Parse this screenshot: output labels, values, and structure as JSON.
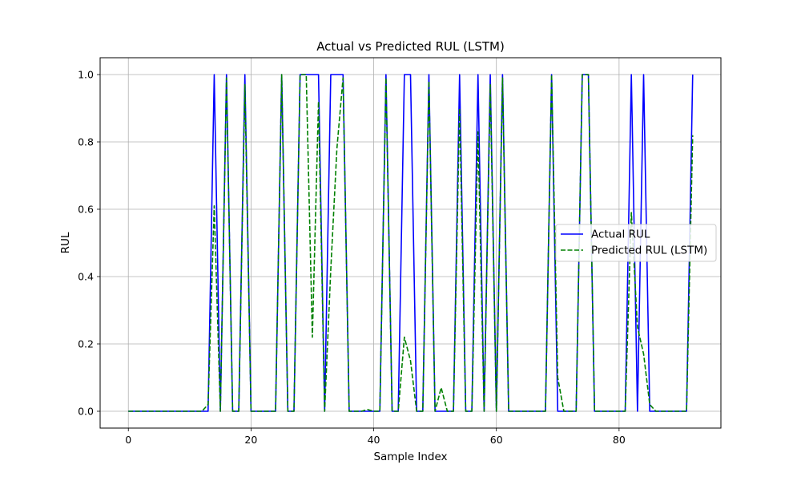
{
  "chart_data": {
    "type": "line",
    "title": "Actual vs Predicted RUL (LSTM)",
    "xlabel": "Sample Index",
    "ylabel": "RUL",
    "xlim": [
      -4.6,
      96.6
    ],
    "ylim": [
      -0.05,
      1.05
    ],
    "xticks": [
      0,
      20,
      40,
      60,
      80
    ],
    "yticks": [
      0.0,
      0.2,
      0.4,
      0.6,
      0.8,
      1.0
    ],
    "grid": true,
    "legend_position": "center-right",
    "series": [
      {
        "name": "Actual RUL",
        "color": "#0000ff",
        "style": "solid",
        "values": [
          0,
          0,
          0,
          0,
          0,
          0,
          0,
          0,
          0,
          0,
          0,
          0,
          0,
          0,
          1,
          0,
          1,
          0,
          0,
          1,
          0,
          0,
          0,
          0,
          0,
          1,
          0,
          0,
          1,
          1,
          1,
          1,
          0,
          1,
          1,
          1,
          0,
          0,
          0,
          0,
          0,
          0,
          1,
          0,
          0,
          1,
          1,
          0,
          0,
          1,
          0,
          0,
          0,
          0,
          1,
          0,
          0,
          1,
          0,
          1,
          0,
          1,
          0,
          0,
          0,
          0,
          0,
          0,
          0,
          1,
          0,
          0,
          0,
          0,
          1,
          1,
          0,
          0,
          0,
          0,
          0,
          0,
          1,
          0,
          1,
          0,
          0,
          0,
          0,
          0,
          0,
          0,
          1
        ]
      },
      {
        "name": "Predicted RUL (LSTM)",
        "color": "#008000",
        "style": "dashed",
        "values": [
          0,
          0,
          0,
          0,
          0,
          0,
          0,
          0,
          0,
          0,
          0,
          0,
          0,
          0.02,
          0.61,
          0,
          0.99,
          0,
          0,
          0.97,
          0,
          0,
          0,
          0,
          0,
          1,
          0,
          0,
          1,
          1,
          0.22,
          0.92,
          0,
          0.42,
          0.78,
          0.99,
          0,
          0,
          0,
          0.005,
          0,
          0,
          0.99,
          0,
          0,
          0.22,
          0.15,
          0,
          0,
          0.98,
          0,
          0.07,
          0,
          0,
          0.9,
          0,
          0,
          0.83,
          0,
          0.97,
          0,
          0.99,
          0,
          0,
          0,
          0,
          0,
          0,
          0,
          1,
          0.1,
          0,
          0,
          0,
          1,
          1,
          0,
          0,
          0,
          0,
          0,
          0,
          0.59,
          0.25,
          0.17,
          0.02,
          0,
          0,
          0,
          0,
          0,
          0,
          0.82
        ]
      }
    ]
  }
}
